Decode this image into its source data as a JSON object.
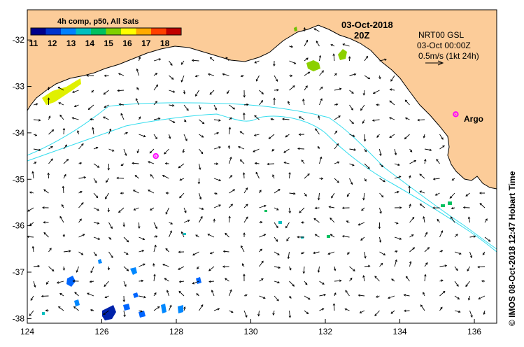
{
  "colorbar": {
    "title": "4h comp, p50, All Sats",
    "labels": [
      "11",
      "12",
      "13",
      "14",
      "15",
      "16",
      "17",
      "18"
    ],
    "colors": [
      "#00008b",
      "#0033cc",
      "#0080ff",
      "#00bfbf",
      "#00c060",
      "#80d000",
      "#ffff00",
      "#ffaa00",
      "#ff4000",
      "#c00000"
    ]
  },
  "timestamp": {
    "date": "03-Oct-2018",
    "hour": "20Z"
  },
  "current_legend": {
    "model": "NRT00 GSL",
    "valid": "03-Oct 00:00Z",
    "scale": "0.5m/s (1kt 24h)"
  },
  "argo": {
    "label": "Argo",
    "color": "#ff00ff"
  },
  "axes": {
    "x_ticks": [
      "124",
      "126",
      "128",
      "130",
      "132",
      "134",
      "136"
    ],
    "y_ticks": [
      "-32",
      "-33",
      "-34",
      "-35",
      "-36",
      "-37",
      "-38"
    ]
  },
  "credit": "© IMOS 08-Oct-2018 12:47 Hobart Time",
  "colors": {
    "land": "#fccc99",
    "isobath": "#33ddee",
    "arrow": "#000000"
  },
  "map_data": {
    "lon_range": [
      124,
      136.6
    ],
    "lat_range": [
      -38.1,
      -31.35
    ],
    "argo_floats": [
      {
        "lon": 127.45,
        "lat": -34.5
      },
      {
        "lon": 135.5,
        "lat": -33.6
      }
    ]
  }
}
